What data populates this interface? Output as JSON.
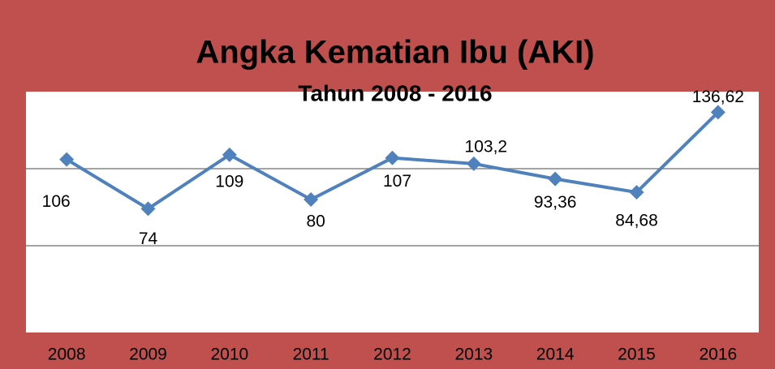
{
  "chart_data": {
    "type": "line",
    "title": "Angka Kematian Ibu (AKI)",
    "subtitle": "Tahun 2008 - 2016",
    "categories": [
      "2008",
      "2009",
      "2010",
      "2011",
      "2012",
      "2013",
      "2014",
      "2015",
      "2016"
    ],
    "series": [
      {
        "name": "AKI",
        "color": "#4f81bd",
        "values": [
          106,
          74,
          109,
          80,
          107,
          103.2,
          93.36,
          84.68,
          136.62
        ],
        "value_labels": [
          "106",
          "74",
          "109",
          "80",
          "107",
          "103,2",
          "93,36",
          "84,68",
          "136,62"
        ]
      }
    ],
    "ylim": [
      0,
      150
    ],
    "yticks": [
      50,
      100
    ],
    "grid": true,
    "legend": false
  }
}
